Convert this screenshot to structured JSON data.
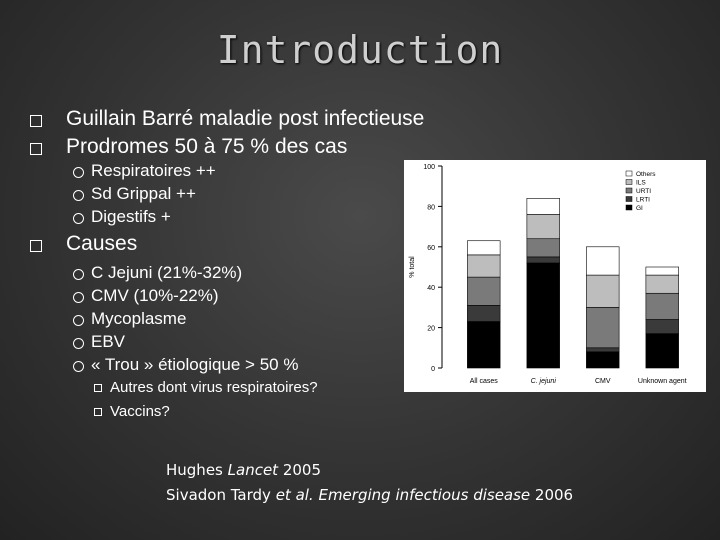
{
  "slide": {
    "title": "Introduction",
    "bullets": [
      "Guillain Barré maladie post infectieuse",
      "Prodromes  50 à 75 % des cas"
    ],
    "prodromes_sub": [
      "Respiratoires ++",
      "Sd Grippal ++",
      "Digestifs +"
    ],
    "causes_label": "Causes",
    "causes_sub": [
      "C Jejuni (21%-32%)",
      "CMV (10%-22%)",
      "Mycoplasme",
      "EBV",
      "« Trou » étiologique > 50 %"
    ],
    "causes_sub2": [
      "Autres dont virus respiratoires?",
      "Vaccins?"
    ],
    "ref1": {
      "author": "Hughes ",
      "journal": "Lancet",
      "year": " 2005"
    },
    "ref2": {
      "author": "Sivadon Tardy ",
      "etal": "et al.",
      "journal": " Emerging infectious disease",
      "year": " 2006"
    }
  },
  "chart_data": {
    "type": "bar",
    "stacked": true,
    "categories": [
      "All cases",
      "C. jejuni",
      "CMV",
      "Unknown agent"
    ],
    "ylabel": "% total",
    "ylim": [
      0,
      100
    ],
    "yticks": [
      0,
      20,
      40,
      60,
      80,
      100
    ],
    "legend_position": "top-right",
    "series": [
      {
        "name": "GI",
        "color": "#000000",
        "values": [
          23,
          52,
          8,
          17
        ]
      },
      {
        "name": "LRTI",
        "color": "#3a3a3a",
        "values": [
          8,
          3,
          2,
          7
        ]
      },
      {
        "name": "URTI",
        "color": "#7a7a7a",
        "values": [
          14,
          9,
          20,
          13
        ]
      },
      {
        "name": "ILS",
        "color": "#bdbdbd",
        "values": [
          11,
          12,
          16,
          9
        ]
      },
      {
        "name": "Others",
        "color": "#ffffff",
        "values": [
          7,
          8,
          14,
          4
        ]
      }
    ]
  }
}
